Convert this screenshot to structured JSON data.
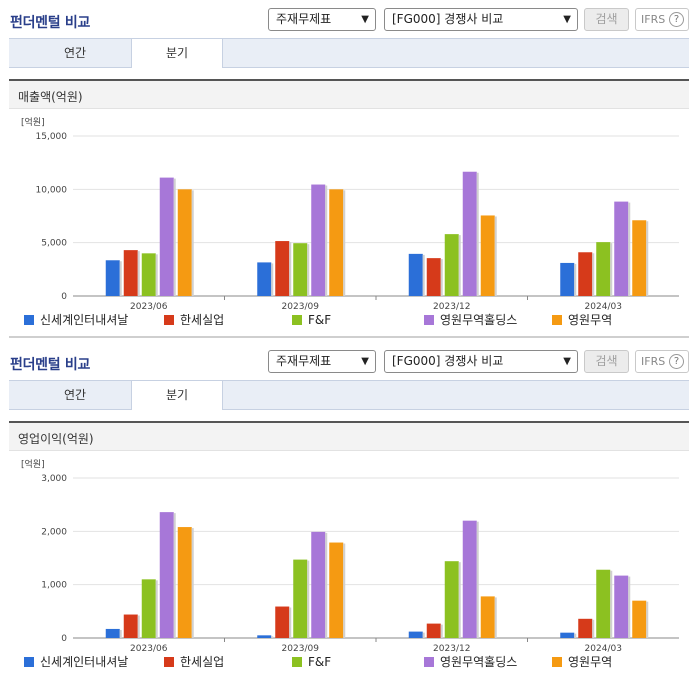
{
  "colors": {
    "series": [
      "#2b6fd8",
      "#d63a1a",
      "#8cc121",
      "#a777d8",
      "#f59a12"
    ],
    "title": "#2a3f8a"
  },
  "panels": [
    {
      "title": "펀더멘털 비교",
      "select1": "주재무제표",
      "select2": "[FG000] 경쟁사 비교",
      "search_label": "검색",
      "ifrs_label": "IFRS",
      "help_icon": "?",
      "tabs": [
        {
          "label": "연간"
        },
        {
          "label": "분기"
        }
      ],
      "active_tab": 1,
      "section_title": "매출액(억원)",
      "chart_data": {
        "type": "bar",
        "unit_label": "[억원]",
        "categories": [
          "2023/06",
          "2023/09",
          "2023/12",
          "2024/03"
        ],
        "ylim": [
          0,
          15000
        ],
        "y_ticks": [
          "0",
          "5,000",
          "10,000",
          "15,000"
        ],
        "y_tick_values": [
          0,
          5000,
          10000,
          15000
        ],
        "series": [
          {
            "name": "신세계인터내셔날",
            "values": [
              3350,
              3150,
              3950,
              3100
            ]
          },
          {
            "name": "한세실업",
            "values": [
              4300,
              5150,
              3550,
              4100
            ]
          },
          {
            "name": "F&F",
            "values": [
              4000,
              4950,
              5800,
              5050
            ]
          },
          {
            "name": "영원무역홀딩스",
            "values": [
              11100,
              10450,
              11650,
              8850
            ]
          },
          {
            "name": "영원무역",
            "values": [
              10000,
              10000,
              7550,
              7100
            ]
          }
        ]
      }
    },
    {
      "title": "펀더멘털 비교",
      "select1": "주재무제표",
      "select2": "[FG000] 경쟁사 비교",
      "search_label": "검색",
      "ifrs_label": "IFRS",
      "help_icon": "?",
      "tabs": [
        {
          "label": "연간"
        },
        {
          "label": "분기"
        }
      ],
      "active_tab": 1,
      "section_title": "영업이익(억원)",
      "chart_data": {
        "type": "bar",
        "unit_label": "[억원]",
        "categories": [
          "2023/06",
          "2023/09",
          "2023/12",
          "2024/03"
        ],
        "ylim": [
          0,
          3000
        ],
        "y_ticks": [
          "0",
          "1,000",
          "2,000",
          "3,000"
        ],
        "y_tick_values": [
          0,
          1000,
          2000,
          3000
        ],
        "series": [
          {
            "name": "신세계인터내셔날",
            "values": [
              170,
              50,
              120,
              100
            ]
          },
          {
            "name": "한세실업",
            "values": [
              440,
              590,
              270,
              360
            ]
          },
          {
            "name": "F&F",
            "values": [
              1100,
              1470,
              1440,
              1280
            ]
          },
          {
            "name": "영원무역홀딩스",
            "values": [
              2360,
              1990,
              2200,
              1170
            ]
          },
          {
            "name": "영원무역",
            "values": [
              2080,
              1790,
              780,
              700
            ]
          }
        ]
      }
    }
  ]
}
